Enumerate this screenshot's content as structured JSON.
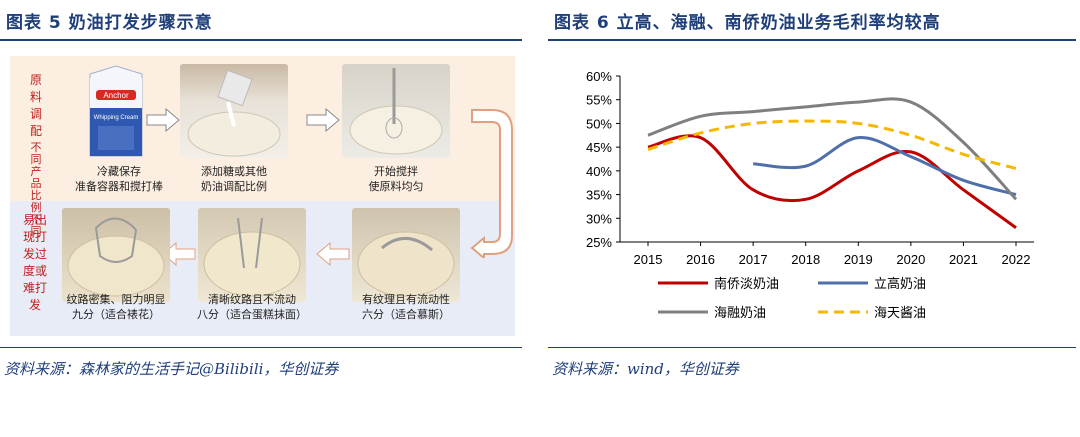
{
  "left": {
    "title": "图表 5 奶油打发步骤示意",
    "side_note_top_a": [
      "原",
      "料",
      "调",
      "配"
    ],
    "side_note_top_b": [
      "不",
      "同",
      "产",
      "品",
      "比",
      "例",
      "不",
      "同"
    ],
    "side_note_bottom": [
      "易出",
      "现打",
      "发过",
      "度或",
      "难打",
      "发"
    ],
    "steps": [
      {
        "line1": "冷藏保存",
        "line2": "准备容器和搅打棒",
        "brand": "Anchor",
        "product": "Whipping Cream"
      },
      {
        "line1": "添加糖或其他",
        "line2": "奶油调配比例"
      },
      {
        "line1": "开始搅拌",
        "line2": "使原料均匀"
      },
      {
        "line1": "有纹理且有流动性",
        "line2": "六分（适合慕斯）"
      },
      {
        "line1": "清晰纹路且不流动",
        "line2": "八分（适合蛋糕抹面）"
      },
      {
        "line1": "纹路密集、阻力明显",
        "line2": "九分（适合裱花）"
      }
    ],
    "source": "资料来源：森林家的生活手记@Bilibili，华创证券"
  },
  "right": {
    "title": "图表 6 立高、海融、南侨奶油业务毛利率均较高",
    "source": "资料来源：wind，华创证券"
  },
  "chart_data": {
    "type": "line",
    "title": "",
    "xlabel": "",
    "ylabel": "",
    "x": [
      2015,
      2016,
      2017,
      2018,
      2019,
      2020,
      2021,
      2022
    ],
    "ylim": [
      25,
      60
    ],
    "yticks": [
      "60%",
      "55%",
      "50%",
      "45%",
      "40%",
      "35%",
      "30%",
      "25%"
    ],
    "grid": false,
    "legend_position": "bottom",
    "series": [
      {
        "name": "南侨淡奶油",
        "color": "#c00000",
        "dash": "solid",
        "values": [
          45,
          47,
          36,
          34,
          40,
          44,
          36,
          28
        ]
      },
      {
        "name": "立高奶油",
        "color": "#4f6fab",
        "dash": "solid",
        "values": [
          null,
          null,
          41.5,
          41,
          47,
          43,
          38,
          35
        ]
      },
      {
        "name": "海融奶油",
        "color": "#7f7f7f",
        "dash": "solid",
        "values": [
          47.5,
          51.5,
          52.5,
          53.5,
          54.5,
          54.5,
          46,
          34
        ]
      },
      {
        "name": "海天酱油",
        "color": "#f5b800",
        "dash": "dashed",
        "values": [
          44.5,
          48,
          50,
          50.5,
          50,
          47.5,
          43.5,
          40.5
        ]
      }
    ]
  }
}
